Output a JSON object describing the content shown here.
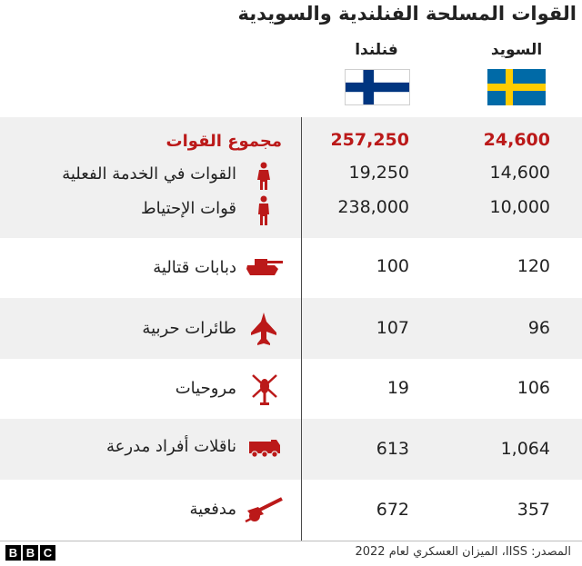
{
  "title": "القوات المسلحة الفنلندية والسويدية",
  "columns": {
    "sweden": "السويد",
    "finland": "فنلندا"
  },
  "colors": {
    "accent_red": "#bb1919",
    "band_grey": "#f0f0f0",
    "sweden_blue": "#006aa7",
    "sweden_yellow": "#fecc00",
    "finland_blue": "#003580"
  },
  "chart_data": {
    "type": "table",
    "rows": [
      {
        "label": "مجموع القوات",
        "finland": "257,250",
        "sweden": "24,600",
        "icon": ""
      },
      {
        "label": "القوات في الخدمة الفعلية",
        "finland": "19,250",
        "sweden": "14,600",
        "icon": "soldier-icon"
      },
      {
        "label": "قوات الإحتياط",
        "finland": "238,000",
        "sweden": "10,000",
        "icon": "soldier-icon"
      },
      {
        "label": "دبابات قتالية",
        "finland": "100",
        "sweden": "120",
        "icon": "tank-icon"
      },
      {
        "label": "طائرات حربية",
        "finland": "107",
        "sweden": "96",
        "icon": "fighter-jet-icon"
      },
      {
        "label": "مروحيات",
        "finland": "19",
        "sweden": "106",
        "icon": "helicopter-icon"
      },
      {
        "label": "ناقلات أفراد مدرعة",
        "finland": "613",
        "sweden": "1,064",
        "icon": "armored-carrier-icon"
      },
      {
        "label": "مدفعية",
        "finland": "672",
        "sweden": "357",
        "icon": "artillery-icon"
      }
    ]
  },
  "footer": {
    "source": "المصدر: IISS، الميزان العسكري لعام 2022",
    "logo_letters": [
      "B",
      "B",
      "C"
    ]
  }
}
